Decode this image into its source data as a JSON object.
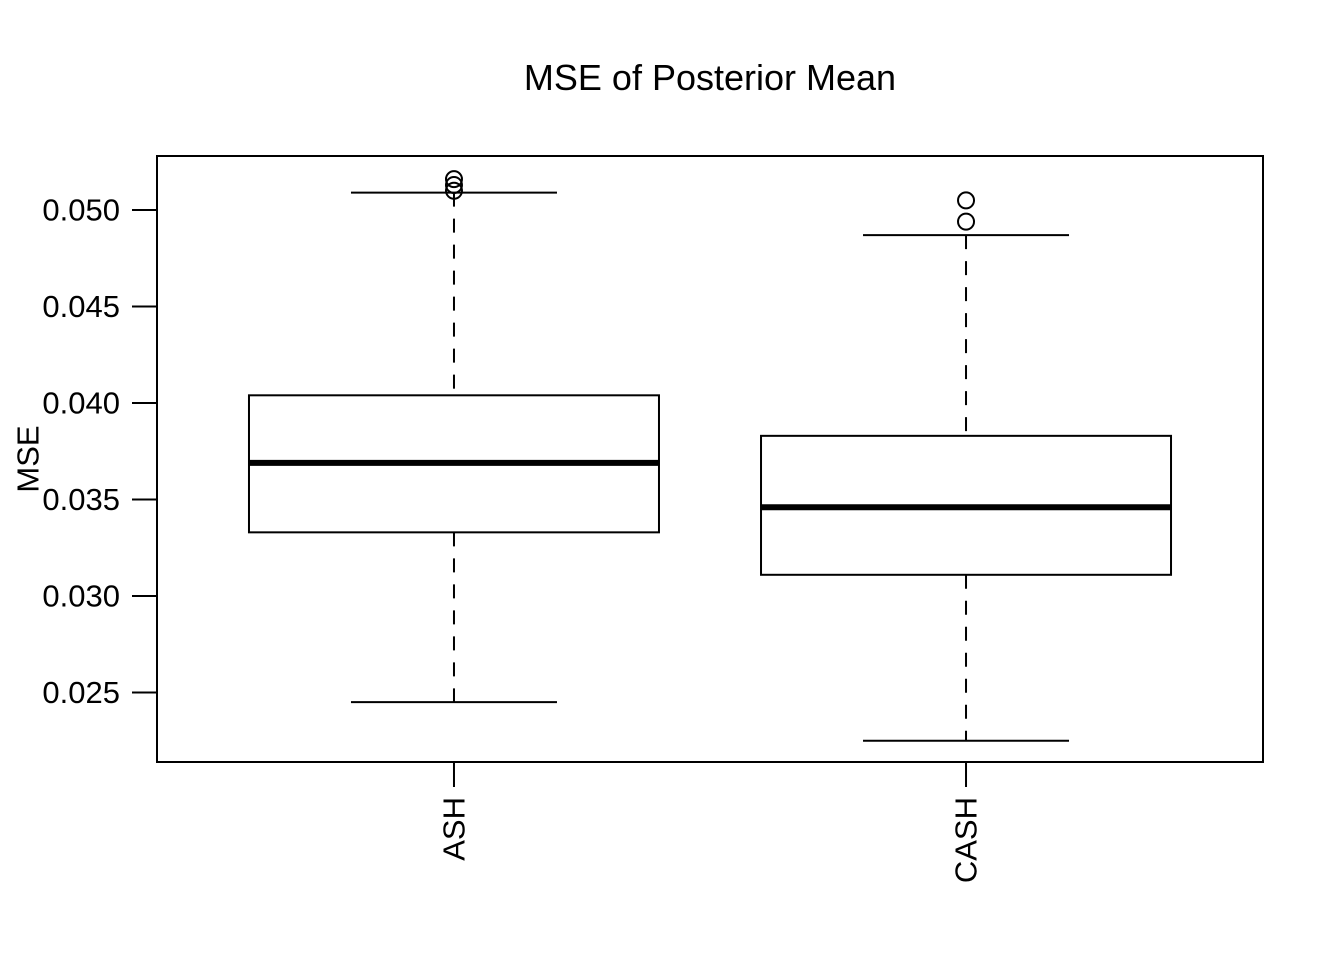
{
  "chart_data": {
    "type": "boxplot",
    "title": "MSE of Posterior Mean",
    "xlabel": "",
    "ylabel": "MSE",
    "categories": [
      "ASH",
      "CASH"
    ],
    "ytick_labels": [
      "0.025",
      "0.030",
      "0.035",
      "0.040",
      "0.045",
      "0.050"
    ],
    "ytick_values": [
      0.025,
      0.03,
      0.035,
      0.04,
      0.045,
      0.05
    ],
    "ylim": [
      0.0214,
      0.0528
    ],
    "grid": false,
    "legend": "none",
    "orientation": "vertical",
    "colors": {
      "foreground": "#000000",
      "background": "#ffffff"
    },
    "series": [
      {
        "name": "ASH",
        "whisker_low": 0.0245,
        "q1": 0.0333,
        "median": 0.0369,
        "q3": 0.0404,
        "whisker_high": 0.0509,
        "outliers": [
          0.0516,
          0.0513,
          0.051
        ]
      },
      {
        "name": "CASH",
        "whisker_low": 0.0225,
        "q1": 0.0311,
        "median": 0.0346,
        "q3": 0.0383,
        "whisker_high": 0.0487,
        "outliers": [
          0.0505,
          0.0494
        ]
      }
    ]
  }
}
